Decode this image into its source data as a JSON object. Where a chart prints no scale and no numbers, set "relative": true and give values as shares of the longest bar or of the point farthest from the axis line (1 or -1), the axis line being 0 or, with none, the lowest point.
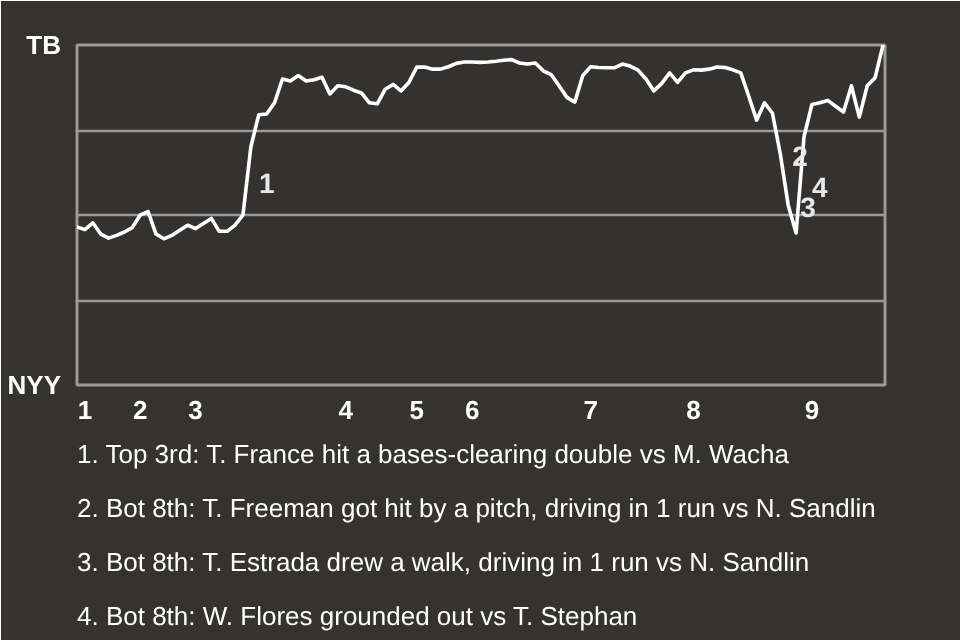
{
  "chart_data": {
    "type": "line",
    "relative": true,
    "grid": "y",
    "categories": [
      null,
      "1",
      null,
      null,
      null,
      null,
      null,
      null,
      "2",
      null,
      null,
      null,
      null,
      null,
      null,
      "3",
      null,
      null,
      null,
      null,
      null,
      null,
      null,
      null,
      null,
      null,
      null,
      null,
      null,
      null,
      null,
      null,
      null,
      null,
      "4",
      null,
      null,
      null,
      null,
      null,
      null,
      null,
      null,
      "5",
      null,
      null,
      null,
      null,
      null,
      null,
      "6",
      null,
      null,
      null,
      null,
      null,
      null,
      null,
      null,
      null,
      null,
      null,
      null,
      null,
      null,
      "7",
      null,
      null,
      null,
      null,
      null,
      null,
      null,
      null,
      null,
      null,
      null,
      null,
      "8",
      null,
      null,
      null,
      null,
      null,
      null,
      null,
      null,
      null,
      null,
      null,
      null,
      null,
      null,
      "9",
      null,
      null,
      null,
      null,
      null,
      null,
      null,
      null,
      null
    ],
    "series": [
      {
        "color": "#ffffff",
        "values": [
          0.465,
          0.457,
          0.477,
          0.444,
          0.432,
          0.44,
          0.45,
          0.463,
          0.5,
          0.51,
          0.444,
          0.43,
          0.44,
          0.455,
          0.47,
          0.46,
          0.475,
          0.49,
          0.452,
          0.452,
          0.47,
          0.5,
          0.7,
          0.795,
          0.797,
          0.83,
          0.9,
          0.894,
          0.91,
          0.894,
          0.898,
          0.905,
          0.856,
          0.88,
          0.877,
          0.867,
          0.859,
          0.83,
          0.827,
          0.87,
          0.884,
          0.865,
          0.89,
          0.935,
          0.935,
          0.929,
          0.929,
          0.936,
          0.946,
          0.95,
          0.95,
          0.949,
          0.95,
          0.952,
          0.955,
          0.957,
          0.947,
          0.944,
          0.947,
          0.924,
          0.913,
          0.88,
          0.846,
          0.832,
          0.91,
          0.936,
          0.934,
          0.933,
          0.933,
          0.944,
          0.938,
          0.926,
          0.9,
          0.865,
          0.887,
          0.918,
          0.89,
          0.918,
          0.927,
          0.926,
          0.929,
          0.935,
          0.934,
          0.927,
          0.918,
          0.85,
          0.779,
          0.83,
          0.8,
          0.68,
          0.529,
          0.447,
          0.73,
          0.825,
          0.83,
          0.837,
          0.82,
          0.803,
          0.88,
          0.788,
          0.88,
          0.904,
          1.0
        ]
      }
    ],
    "annotations": [
      "TB",
      "NYY",
      "1",
      "2",
      "3",
      "4",
      "1. Top 3rd: T. France hit a bases-clearing double vs M. Wacha",
      "2. Bot 8th: T. Freeman got hit by a pitch, driving in 1 run vs N. Sandlin",
      "3. Bot 8th: T. Estrada drew a walk, driving in 1 run vs N. Sandlin",
      "4. Bot 8th: W. Flores grounded out vs T. Stephan"
    ]
  }
}
